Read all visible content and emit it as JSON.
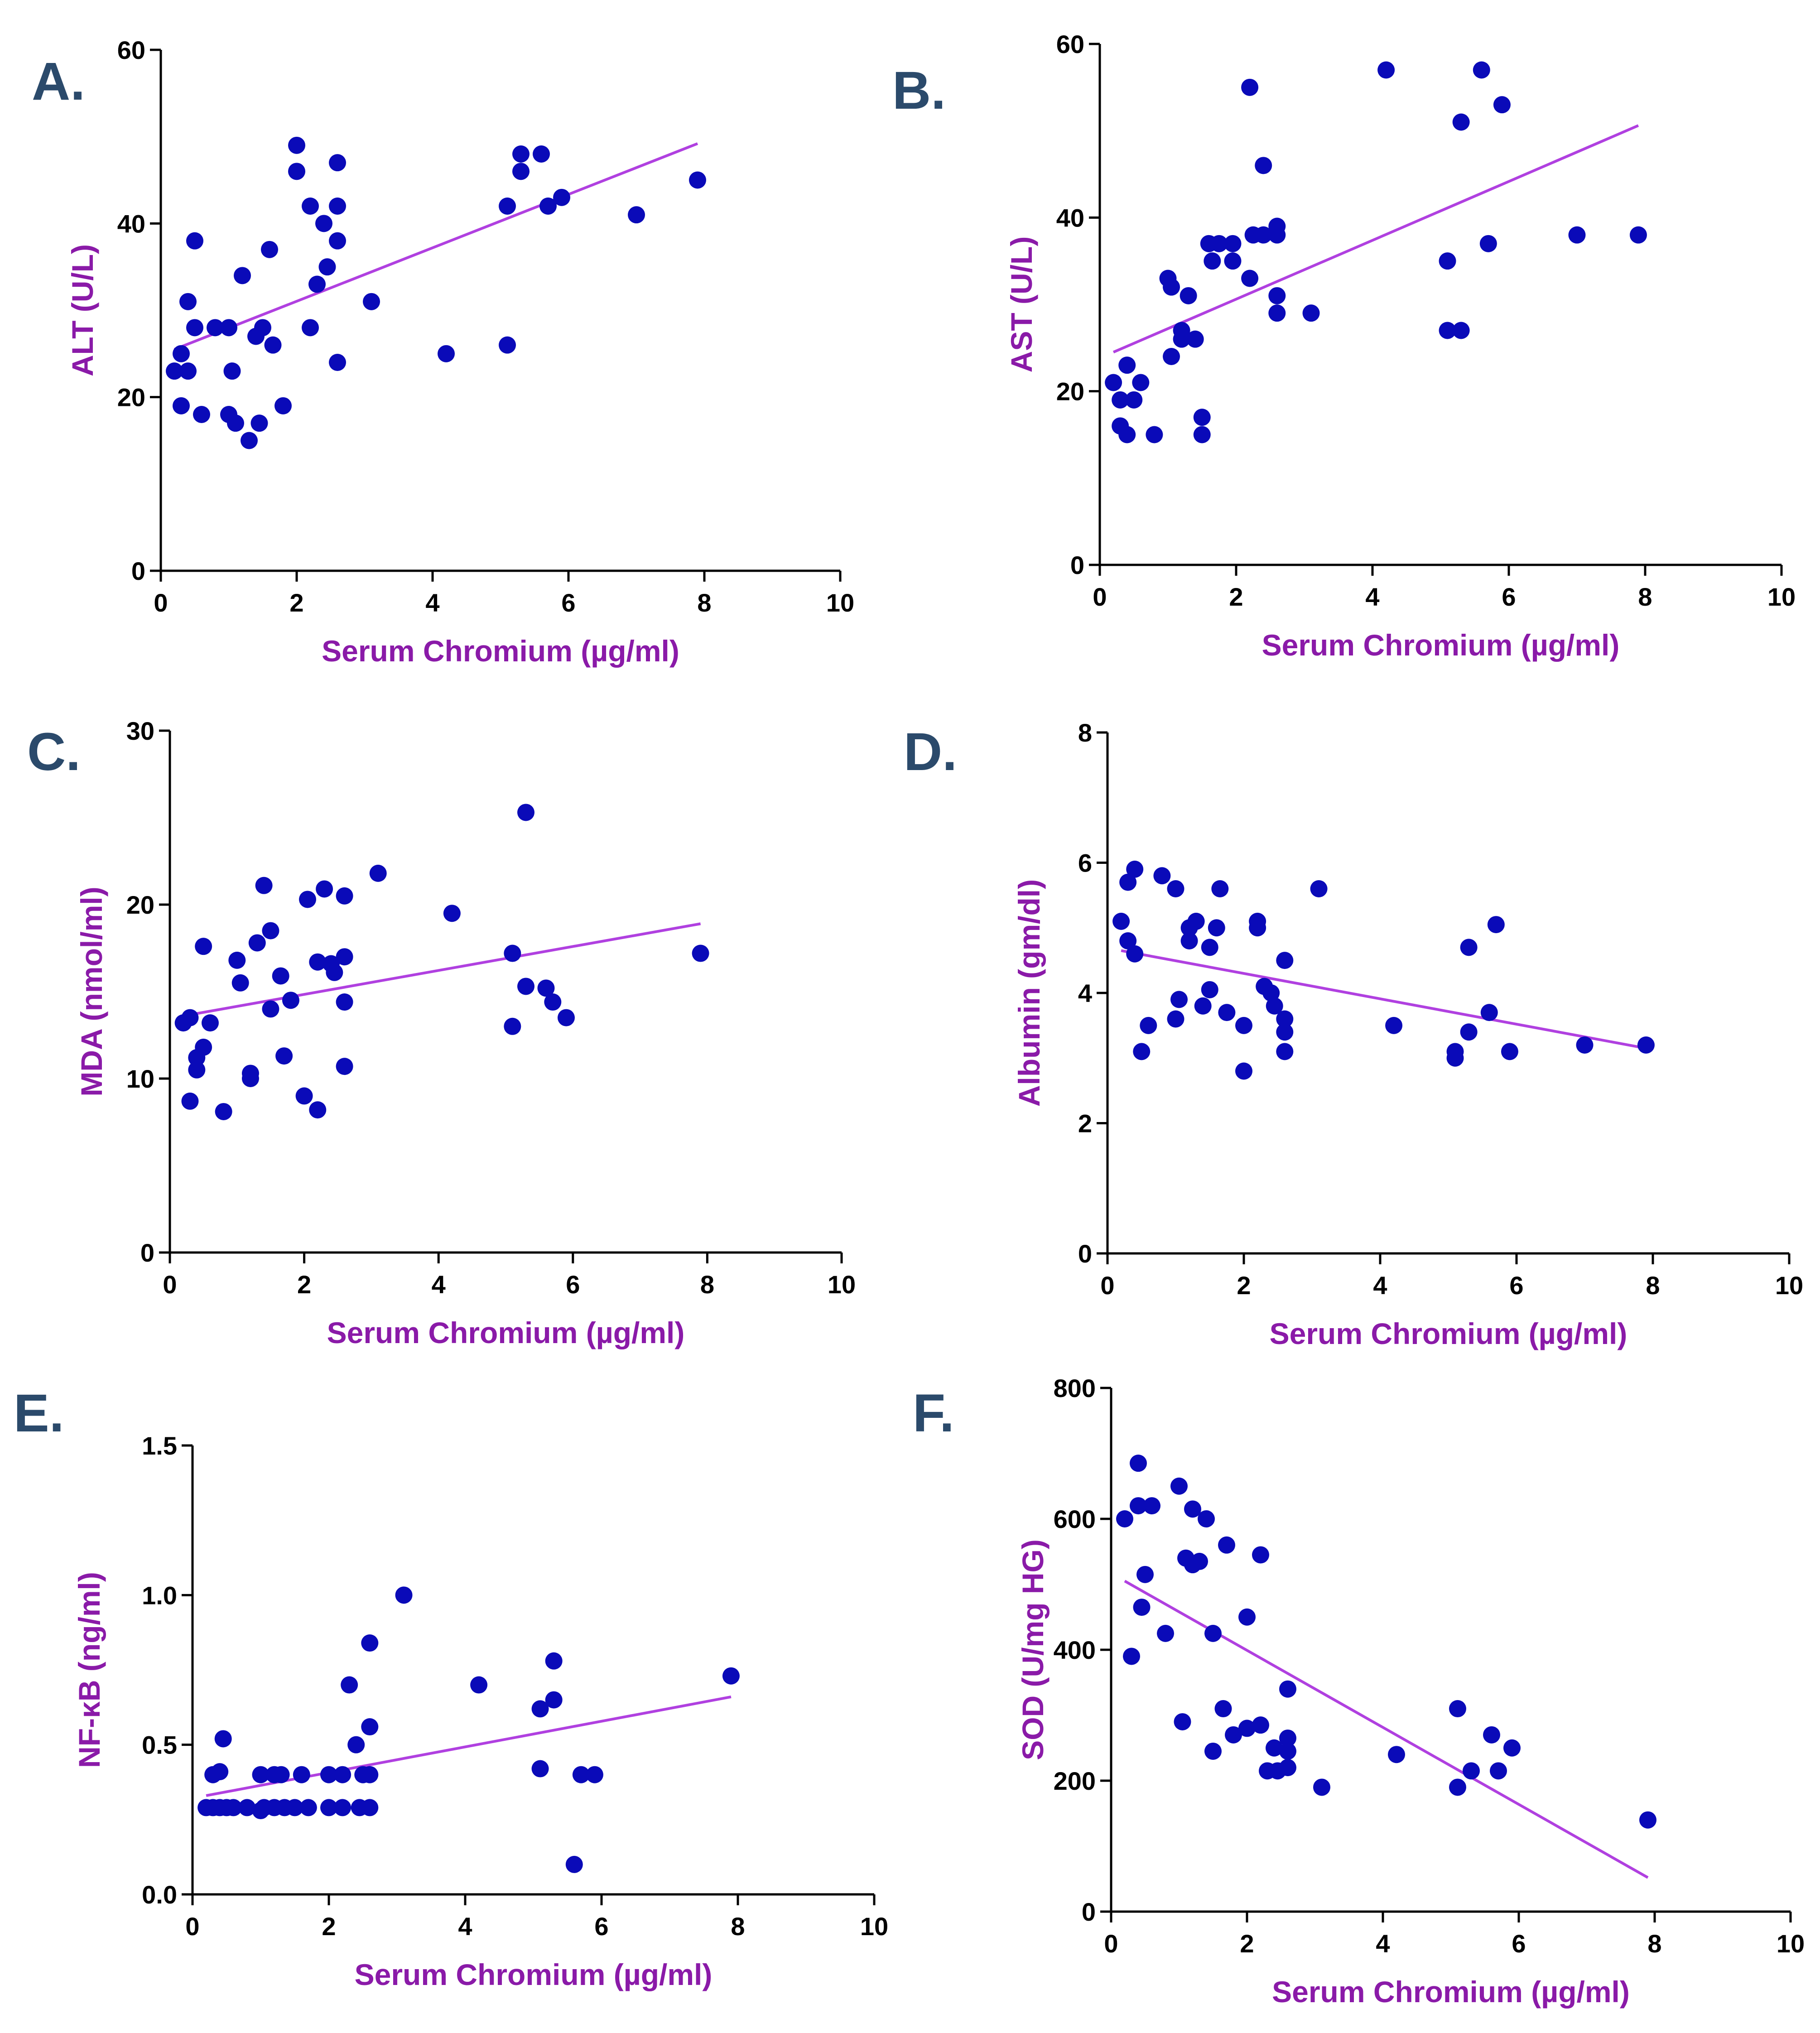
{
  "colors": {
    "point": "#0a0ab8",
    "line": "#b040e0",
    "label": "#8a1aa8",
    "panel_letter": "#2b4a6b"
  },
  "chart_data": [
    {
      "panel": "A.",
      "type": "scatter",
      "xlabel": "Serum Chromium (µg/ml)",
      "ylabel": "ALT (U/L)",
      "xlim": [
        0,
        10
      ],
      "ylim": [
        0,
        60
      ],
      "xticks": [
        "0",
        "2",
        "4",
        "6",
        "8",
        "10"
      ],
      "yticks": [
        "0",
        "20",
        "40",
        "60"
      ],
      "xtick_values": [
        0,
        2,
        4,
        6,
        8,
        10
      ],
      "ytick_values": [
        0,
        20,
        40,
        60
      ],
      "points": [
        [
          0.2,
          23
        ],
        [
          0.3,
          19
        ],
        [
          0.3,
          25
        ],
        [
          0.4,
          31
        ],
        [
          0.4,
          23
        ],
        [
          0.5,
          28
        ],
        [
          0.5,
          38
        ],
        [
          0.6,
          18
        ],
        [
          0.8,
          28
        ],
        [
          1.0,
          18
        ],
        [
          1.0,
          28
        ],
        [
          1.1,
          17
        ],
        [
          1.05,
          23
        ],
        [
          1.2,
          34
        ],
        [
          1.3,
          15
        ],
        [
          1.4,
          27
        ],
        [
          1.45,
          17
        ],
        [
          1.5,
          28
        ],
        [
          1.6,
          37
        ],
        [
          1.65,
          26
        ],
        [
          1.8,
          19
        ],
        [
          2.0,
          49
        ],
        [
          2.0,
          46
        ],
        [
          2.2,
          42
        ],
        [
          2.2,
          28
        ],
        [
          2.3,
          33
        ],
        [
          2.4,
          40
        ],
        [
          2.45,
          35
        ],
        [
          2.6,
          47
        ],
        [
          2.6,
          42
        ],
        [
          2.6,
          38
        ],
        [
          2.6,
          24
        ],
        [
          3.1,
          31
        ],
        [
          4.2,
          25
        ],
        [
          5.1,
          42
        ],
        [
          5.1,
          26
        ],
        [
          5.3,
          48
        ],
        [
          5.3,
          46
        ],
        [
          5.6,
          48
        ],
        [
          5.7,
          42
        ],
        [
          5.9,
          43
        ],
        [
          7.0,
          41
        ],
        [
          7.9,
          45
        ]
      ],
      "fit": [
        [
          0.2,
          25.5
        ],
        [
          7.9,
          49.2
        ]
      ]
    },
    {
      "panel": "B.",
      "type": "scatter",
      "xlabel": "Serum Chromium (µg/ml)",
      "ylabel": "AST (U/L)",
      "xlim": [
        0,
        10
      ],
      "ylim": [
        0,
        60
      ],
      "xticks": [
        "0",
        "2",
        "4",
        "6",
        "8",
        "10"
      ],
      "yticks": [
        "0",
        "20",
        "40",
        "60"
      ],
      "xtick_values": [
        0,
        2,
        4,
        6,
        8,
        10
      ],
      "ytick_values": [
        0,
        20,
        40,
        60
      ],
      "points": [
        [
          0.2,
          21
        ],
        [
          0.3,
          19
        ],
        [
          0.3,
          16
        ],
        [
          0.4,
          23
        ],
        [
          0.4,
          15
        ],
        [
          0.5,
          19
        ],
        [
          0.6,
          21
        ],
        [
          0.8,
          15
        ],
        [
          1.0,
          33
        ],
        [
          1.05,
          32
        ],
        [
          1.05,
          24
        ],
        [
          1.2,
          27
        ],
        [
          1.2,
          26
        ],
        [
          1.3,
          31
        ],
        [
          1.4,
          26
        ],
        [
          1.5,
          17
        ],
        [
          1.5,
          15
        ],
        [
          1.6,
          37
        ],
        [
          1.65,
          35
        ],
        [
          1.75,
          37
        ],
        [
          1.95,
          37
        ],
        [
          1.95,
          35
        ],
        [
          2.2,
          33
        ],
        [
          2.2,
          55
        ],
        [
          2.25,
          38
        ],
        [
          2.4,
          46
        ],
        [
          2.4,
          38
        ],
        [
          2.6,
          39
        ],
        [
          2.6,
          38
        ],
        [
          2.6,
          31
        ],
        [
          2.6,
          29
        ],
        [
          3.1,
          29
        ],
        [
          4.2,
          57
        ],
        [
          5.1,
          35
        ],
        [
          5.1,
          27
        ],
        [
          5.3,
          51
        ],
        [
          5.3,
          27
        ],
        [
          5.6,
          57
        ],
        [
          5.7,
          37
        ],
        [
          5.9,
          53
        ],
        [
          7.0,
          38
        ],
        [
          7.9,
          38
        ]
      ],
      "fit": [
        [
          0.2,
          24.5
        ],
        [
          7.9,
          50.6
        ]
      ]
    },
    {
      "panel": "C.",
      "type": "scatter",
      "xlabel": "Serum Chromium (µg/ml)",
      "ylabel": "MDA (nmol/ml)",
      "xlim": [
        0,
        10
      ],
      "ylim": [
        0,
        30
      ],
      "xticks": [
        "0",
        "2",
        "4",
        "6",
        "8",
        "10"
      ],
      "yticks": [
        "0",
        "10",
        "20",
        "30"
      ],
      "xtick_values": [
        0,
        2,
        4,
        6,
        8,
        10
      ],
      "ytick_values": [
        0,
        10,
        20,
        30
      ],
      "points": [
        [
          0.2,
          13.2
        ],
        [
          0.3,
          13.5
        ],
        [
          0.3,
          8.7
        ],
        [
          0.4,
          11.2
        ],
        [
          0.4,
          10.5
        ],
        [
          0.5,
          17.6
        ],
        [
          0.5,
          11.8
        ],
        [
          0.6,
          13.2
        ],
        [
          0.8,
          8.1
        ],
        [
          1.0,
          16.8
        ],
        [
          1.05,
          15.5
        ],
        [
          1.2,
          10.3
        ],
        [
          1.2,
          10.0
        ],
        [
          1.3,
          17.8
        ],
        [
          1.4,
          21.1
        ],
        [
          1.5,
          18.5
        ],
        [
          1.5,
          14.0
        ],
        [
          1.65,
          15.9
        ],
        [
          1.7,
          11.3
        ],
        [
          1.8,
          14.5
        ],
        [
          2.0,
          9.0
        ],
        [
          2.05,
          20.3
        ],
        [
          2.2,
          8.2
        ],
        [
          2.2,
          16.7
        ],
        [
          2.3,
          20.9
        ],
        [
          2.4,
          16.6
        ],
        [
          2.45,
          16.1
        ],
        [
          2.6,
          20.5
        ],
        [
          2.6,
          17.0
        ],
        [
          2.6,
          14.4
        ],
        [
          2.6,
          10.7
        ],
        [
          3.1,
          21.8
        ],
        [
          4.2,
          19.5
        ],
        [
          5.1,
          17.2
        ],
        [
          5.1,
          13.0
        ],
        [
          5.3,
          25.3
        ],
        [
          5.3,
          15.3
        ],
        [
          5.6,
          15.2
        ],
        [
          5.7,
          14.4
        ],
        [
          5.9,
          13.5
        ],
        [
          7.9,
          17.2
        ]
      ],
      "fit": [
        [
          0.2,
          13.6
        ],
        [
          7.9,
          18.9
        ]
      ]
    },
    {
      "panel": "D.",
      "type": "scatter",
      "xlabel": "Serum Chromium (µg/ml)",
      "ylabel": "Albumin (gm/dl)",
      "xlim": [
        0,
        10
      ],
      "ylim": [
        0,
        8
      ],
      "xticks": [
        "0",
        "2",
        "4",
        "6",
        "8",
        "10"
      ],
      "yticks": [
        "0",
        "2",
        "4",
        "6",
        "8"
      ],
      "xtick_values": [
        0,
        2,
        4,
        6,
        8,
        10
      ],
      "ytick_values": [
        0,
        2,
        4,
        6,
        8
      ],
      "points": [
        [
          0.2,
          5.1
        ],
        [
          0.3,
          5.7
        ],
        [
          0.3,
          4.8
        ],
        [
          0.4,
          5.9
        ],
        [
          0.4,
          4.6
        ],
        [
          0.5,
          3.1
        ],
        [
          0.6,
          3.5
        ],
        [
          0.8,
          5.8
        ],
        [
          1.0,
          5.6
        ],
        [
          1.0,
          3.6
        ],
        [
          1.05,
          3.9
        ],
        [
          1.2,
          4.8
        ],
        [
          1.2,
          5.0
        ],
        [
          1.3,
          5.1
        ],
        [
          1.4,
          3.8
        ],
        [
          1.5,
          4.7
        ],
        [
          1.5,
          4.05
        ],
        [
          1.6,
          5.0
        ],
        [
          1.65,
          5.6
        ],
        [
          1.75,
          3.7
        ],
        [
          2.0,
          3.5
        ],
        [
          2.0,
          2.8
        ],
        [
          2.2,
          5.1
        ],
        [
          2.2,
          5.0
        ],
        [
          2.3,
          4.1
        ],
        [
          2.4,
          4.0
        ],
        [
          2.45,
          3.8
        ],
        [
          2.6,
          4.5
        ],
        [
          2.6,
          3.6
        ],
        [
          2.6,
          3.4
        ],
        [
          2.6,
          3.1
        ],
        [
          3.1,
          5.6
        ],
        [
          4.2,
          3.5
        ],
        [
          5.1,
          3.1
        ],
        [
          5.1,
          3.0
        ],
        [
          5.3,
          4.7
        ],
        [
          5.3,
          3.4
        ],
        [
          5.6,
          3.7
        ],
        [
          5.7,
          5.05
        ],
        [
          5.9,
          3.1
        ],
        [
          7.0,
          3.2
        ],
        [
          7.9,
          3.2
        ]
      ],
      "fit": [
        [
          0.2,
          4.65
        ],
        [
          7.9,
          3.15
        ]
      ]
    },
    {
      "panel": "E.",
      "type": "scatter",
      "xlabel": "Serum Chromium (µg/ml)",
      "ylabel": "NF-κB (ng/ml)",
      "xlim": [
        0,
        10
      ],
      "ylim": [
        0,
        1.5
      ],
      "xticks": [
        "0",
        "2",
        "4",
        "6",
        "8",
        "10"
      ],
      "yticks": [
        "0.0",
        "0.5",
        "1.0",
        "1.5"
      ],
      "xtick_values": [
        0,
        2,
        4,
        6,
        8,
        10
      ],
      "ytick_values": [
        0,
        0.5,
        1.0,
        1.5
      ],
      "points": [
        [
          0.2,
          0.29
        ],
        [
          0.3,
          0.29
        ],
        [
          0.3,
          0.4
        ],
        [
          0.4,
          0.29
        ],
        [
          0.4,
          0.41
        ],
        [
          0.45,
          0.52
        ],
        [
          0.5,
          0.29
        ],
        [
          0.6,
          0.29
        ],
        [
          0.8,
          0.29
        ],
        [
          1.0,
          0.28
        ],
        [
          1.0,
          0.4
        ],
        [
          1.05,
          0.29
        ],
        [
          1.2,
          0.4
        ],
        [
          1.2,
          0.29
        ],
        [
          1.3,
          0.4
        ],
        [
          1.35,
          0.29
        ],
        [
          1.5,
          0.29
        ],
        [
          1.6,
          0.4
        ],
        [
          1.7,
          0.29
        ],
        [
          2.0,
          0.29
        ],
        [
          2.0,
          0.4
        ],
        [
          2.2,
          0.4
        ],
        [
          2.2,
          0.29
        ],
        [
          2.3,
          0.7
        ],
        [
          2.4,
          0.5
        ],
        [
          2.45,
          0.29
        ],
        [
          2.5,
          0.4
        ],
        [
          2.6,
          0.84
        ],
        [
          2.6,
          0.56
        ],
        [
          2.6,
          0.4
        ],
        [
          2.6,
          0.29
        ],
        [
          3.1,
          1.0
        ],
        [
          4.2,
          0.7
        ],
        [
          5.1,
          0.62
        ],
        [
          5.1,
          0.42
        ],
        [
          5.3,
          0.78
        ],
        [
          5.3,
          0.65
        ],
        [
          5.6,
          0.1
        ],
        [
          5.7,
          0.4
        ],
        [
          5.9,
          0.4
        ],
        [
          7.9,
          0.73
        ]
      ],
      "fit": [
        [
          0.2,
          0.33
        ],
        [
          7.9,
          0.66
        ]
      ]
    },
    {
      "panel": "F.",
      "type": "scatter",
      "xlabel": "Serum Chromium (µg/ml)",
      "ylabel": "SOD (U/mg HG)",
      "xlim": [
        0,
        10
      ],
      "ylim": [
        0,
        800
      ],
      "xticks": [
        "0",
        "2",
        "4",
        "6",
        "8",
        "10"
      ],
      "yticks": [
        "0",
        "200",
        "400",
        "600",
        "800"
      ],
      "xtick_values": [
        0,
        2,
        4,
        6,
        8,
        10
      ],
      "ytick_values": [
        0,
        200,
        400,
        600,
        800
      ],
      "points": [
        [
          0.2,
          600
        ],
        [
          0.3,
          390
        ],
        [
          0.4,
          620
        ],
        [
          0.4,
          685
        ],
        [
          0.45,
          465
        ],
        [
          0.5,
          515
        ],
        [
          0.6,
          620
        ],
        [
          0.8,
          425
        ],
        [
          1.0,
          650
        ],
        [
          1.05,
          290
        ],
        [
          1.1,
          540
        ],
        [
          1.2,
          615
        ],
        [
          1.2,
          530
        ],
        [
          1.3,
          535
        ],
        [
          1.4,
          600
        ],
        [
          1.5,
          245
        ],
        [
          1.5,
          425
        ],
        [
          1.65,
          310
        ],
        [
          1.7,
          560
        ],
        [
          1.8,
          270
        ],
        [
          2.0,
          450
        ],
        [
          2.0,
          280
        ],
        [
          2.2,
          285
        ],
        [
          2.2,
          545
        ],
        [
          2.3,
          215
        ],
        [
          2.4,
          250
        ],
        [
          2.45,
          215
        ],
        [
          2.6,
          340
        ],
        [
          2.6,
          265
        ],
        [
          2.6,
          245
        ],
        [
          2.6,
          220
        ],
        [
          3.1,
          190
        ],
        [
          4.2,
          240
        ],
        [
          5.1,
          310
        ],
        [
          5.1,
          190
        ],
        [
          5.3,
          215
        ],
        [
          5.6,
          270
        ],
        [
          5.7,
          215
        ],
        [
          5.9,
          250
        ],
        [
          7.9,
          140
        ]
      ],
      "fit": [
        [
          0.2,
          505
        ],
        [
          7.9,
          52
        ]
      ]
    }
  ]
}
